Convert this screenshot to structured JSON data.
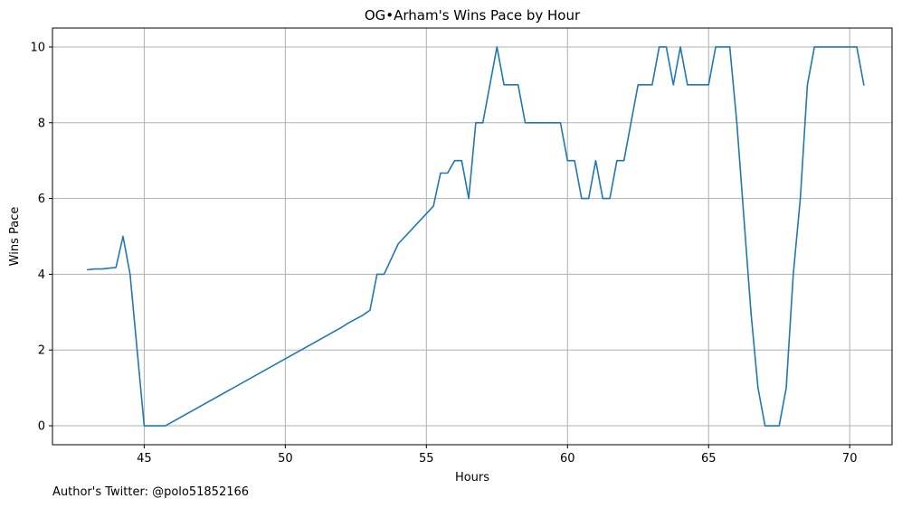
{
  "chart_data": {
    "type": "line",
    "title": "OG•Arham's Wins Pace by Hour",
    "xlabel": "Hours",
    "ylabel": "Wins Pace",
    "xlim": [
      41.75,
      71.5
    ],
    "ylim": [
      -0.5,
      10.5
    ],
    "x_ticks": [
      45,
      50,
      55,
      60,
      65,
      70
    ],
    "y_ticks": [
      0,
      2,
      4,
      6,
      8,
      10
    ],
    "grid": true,
    "line_color": "#1f77b4",
    "series": [
      {
        "x": [
          43.0,
          43.25,
          43.5,
          43.75,
          44.0,
          44.25,
          44.5,
          45.0,
          45.25,
          45.5,
          45.75,
          52.0,
          52.25,
          52.75,
          53.0,
          53.25,
          53.5,
          54.0,
          55.25,
          55.5,
          55.75,
          56.0,
          56.25,
          56.5,
          56.75,
          57.0,
          57.5,
          57.75,
          58.0,
          58.25,
          58.5,
          58.75,
          59.75,
          60.0,
          60.25,
          60.5,
          60.75,
          61.0,
          61.25,
          61.5,
          61.75,
          62.0,
          62.5,
          62.75,
          63.0,
          63.25,
          63.5,
          63.75,
          64.0,
          64.25,
          64.5,
          65.0,
          65.25,
          65.5,
          65.75,
          66.0,
          66.5,
          66.75,
          67.0,
          67.25,
          67.5,
          67.75,
          68.0,
          68.25,
          68.5,
          68.75,
          69.0,
          69.25,
          70.25,
          70.5
        ],
        "y": [
          4.12,
          4.14,
          4.14,
          4.16,
          4.18,
          5.0,
          4.0,
          0.0,
          0.0,
          0.0,
          0.0,
          2.6,
          2.72,
          2.92,
          3.05,
          4.0,
          4.0,
          4.8,
          5.8,
          6.67,
          6.67,
          7.0,
          7.0,
          6.0,
          8.0,
          8.0,
          10.0,
          9.0,
          9.0,
          9.0,
          8.0,
          8.0,
          8.0,
          7.0,
          7.0,
          6.0,
          6.0,
          7.0,
          6.0,
          6.0,
          7.0,
          7.0,
          9.0,
          9.0,
          9.0,
          10.0,
          10.0,
          9.0,
          10.0,
          9.0,
          9.0,
          9.0,
          10.0,
          10.0,
          10.0,
          8.0,
          3.0,
          1.0,
          0.0,
          0.0,
          0.0,
          1.0,
          4.0,
          6.0,
          9.0,
          10.0,
          10.0,
          10.0,
          10.0,
          9.0
        ]
      }
    ]
  },
  "footer": {
    "text": "Author's Twitter: @polo51852166"
  }
}
